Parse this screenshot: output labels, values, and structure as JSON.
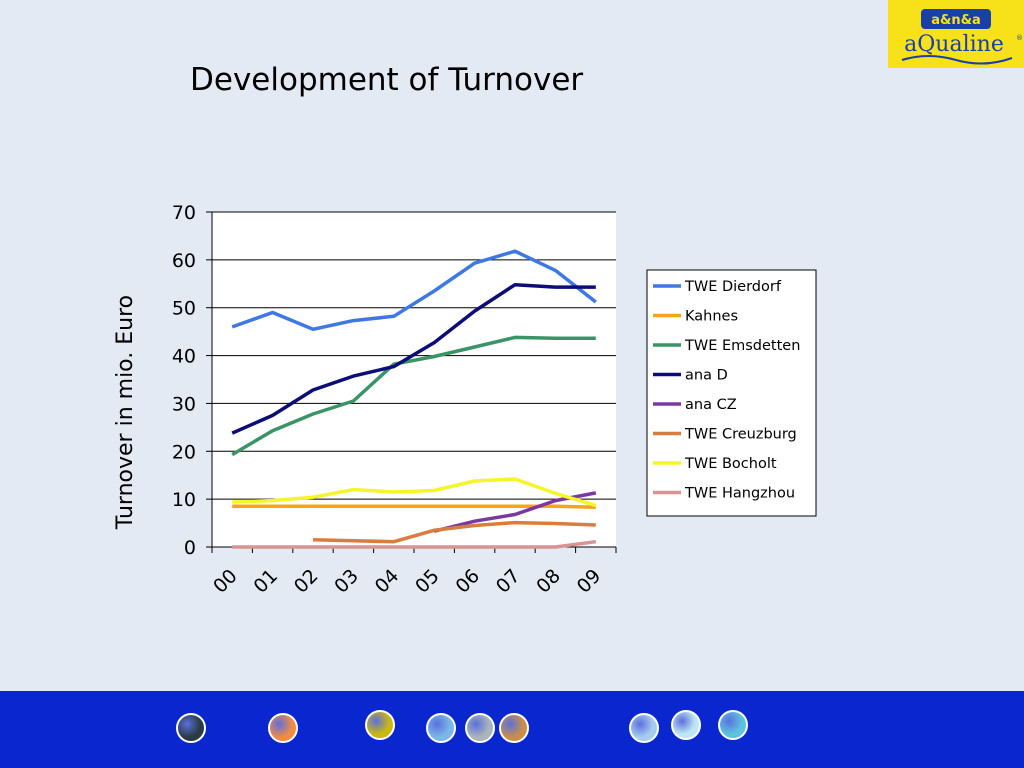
{
  "slide": {
    "title": "Development of Turnover"
  },
  "logo": {
    "top_text": "a&n&a",
    "brand": "aQualine",
    "registered": "®",
    "colors": {
      "background": "#f7e21a",
      "text": "#1a3fa8",
      "badge": "#1a3fa8"
    }
  },
  "chart_data": {
    "type": "line",
    "title": "",
    "xlabel": "",
    "ylabel": "Turnover in mio. Euro",
    "ylim": [
      0,
      70
    ],
    "yticks": [
      0,
      10,
      20,
      30,
      40,
      50,
      60,
      70
    ],
    "grid": "horizontal",
    "legend_position": "right",
    "categories": [
      "00",
      "01",
      "02",
      "03",
      "04",
      "05",
      "06",
      "07",
      "08",
      "09"
    ],
    "series": [
      {
        "name": "TWE Dierdorf",
        "color": "#3d78e3",
        "values": [
          46,
          49,
          45.5,
          47.3,
          48.2,
          53.5,
          59.3,
          61.8,
          57.8,
          51.2
        ]
      },
      {
        "name": "Kahnes",
        "color": "#f7a31c",
        "values": [
          8.5,
          8.5,
          8.5,
          8.5,
          8.5,
          8.5,
          8.5,
          8.5,
          8.5,
          8.3
        ]
      },
      {
        "name": "TWE Emsdetten",
        "color": "#3a9467",
        "values": [
          19.3,
          24.3,
          27.8,
          30.5,
          38.2,
          39.8,
          41.8,
          43.8,
          43.6,
          43.6
        ]
      },
      {
        "name": "ana D",
        "color": "#0c0d77",
        "values": [
          23.8,
          27.5,
          32.8,
          35.7,
          37.7,
          42.7,
          49.3,
          54.8,
          54.3,
          54.3
        ]
      },
      {
        "name": "ana CZ",
        "color": "#7b39a0",
        "values": [
          null,
          null,
          null,
          null,
          null,
          3.3,
          5.4,
          6.8,
          9.7,
          11.3
        ]
      },
      {
        "name": "TWE Creuzburg",
        "color": "#d97c3c",
        "values": [
          null,
          null,
          1.5,
          1.3,
          1.1,
          3.5,
          4.5,
          5.1,
          4.9,
          4.6
        ]
      },
      {
        "name": "TWE Bocholt",
        "color": "#f5f52a",
        "values": [
          9.4,
          9.7,
          10.4,
          12,
          11.5,
          11.8,
          13.8,
          14.2,
          11.2,
          8.7
        ]
      },
      {
        "name": "TWE Hangzhou",
        "color": "#d99393",
        "values": [
          0,
          0,
          0,
          0,
          0,
          0,
          0,
          0,
          0,
          1.1
        ]
      }
    ]
  },
  "footer": {
    "background": "#0a27cf",
    "nav_icons": [
      {
        "name": "fabric-dark-icon",
        "color": "#2a3b44"
      },
      {
        "name": "fabric-orange-icon",
        "color": "#f28a45"
      },
      {
        "name": "fabric-yellow-icon",
        "color": "#c9b812"
      },
      {
        "name": "fabric-lightblue-icon",
        "color": "#7ab8e8"
      },
      {
        "name": "fabric-grey-icon",
        "color": "#a9b5ba"
      },
      {
        "name": "fabric-brown-icon",
        "color": "#c98f4a"
      },
      {
        "name": "fabric-paleblue-icon",
        "color": "#a7cdee"
      },
      {
        "name": "fabric-cyan-icon",
        "color": "#bfe7f2"
      },
      {
        "name": "fabric-turquoise-icon",
        "color": "#5cc3df"
      }
    ]
  }
}
